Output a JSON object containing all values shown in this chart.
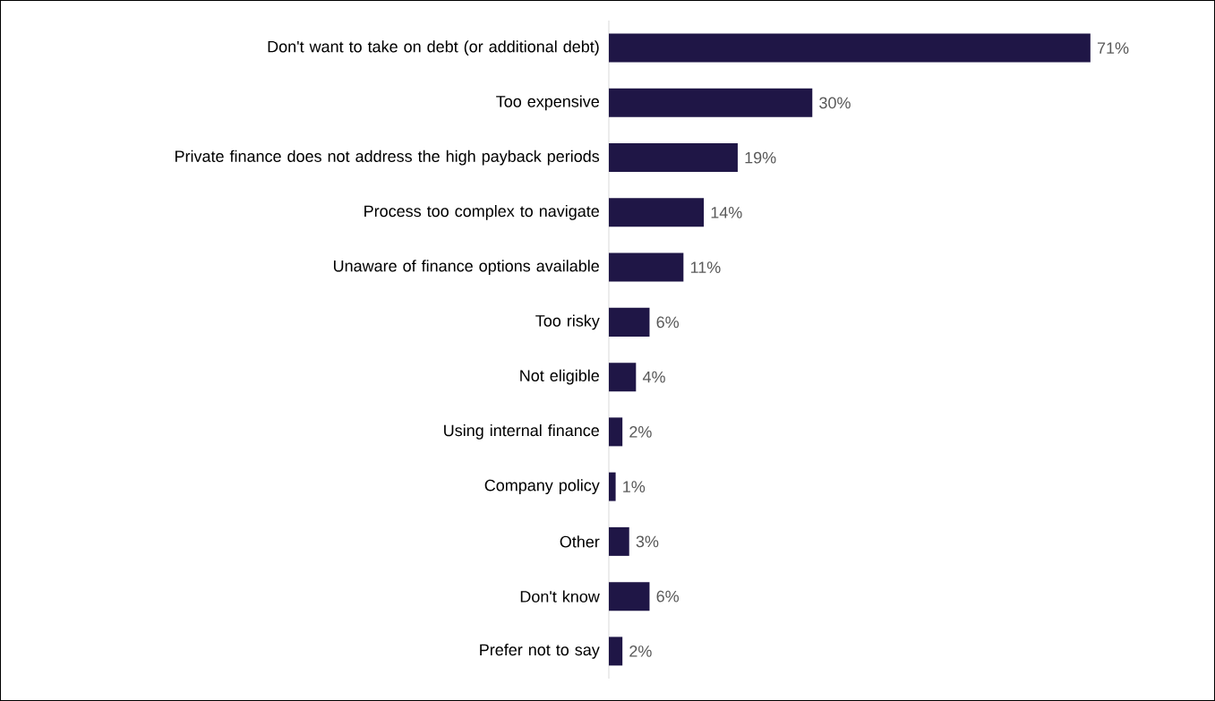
{
  "chart_data": {
    "type": "bar",
    "orientation": "horizontal",
    "categories": [
      "Don't want to take on debt (or additional debt)",
      "Too expensive",
      "Private finance does not address the high payback periods",
      "Process too complex to navigate",
      "Unaware of finance options available",
      "Too risky",
      "Not eligible",
      "Using internal finance",
      "Company policy",
      "Other",
      "Don't know",
      "Prefer not to say"
    ],
    "values": [
      71,
      30,
      19,
      14,
      11,
      6,
      4,
      2,
      1,
      3,
      6,
      2
    ],
    "value_labels": [
      "71%",
      "30%",
      "19%",
      "14%",
      "11%",
      "6%",
      "4%",
      "2%",
      "1%",
      "3%",
      "6%",
      "2%"
    ],
    "color": "#1f1646"
  }
}
